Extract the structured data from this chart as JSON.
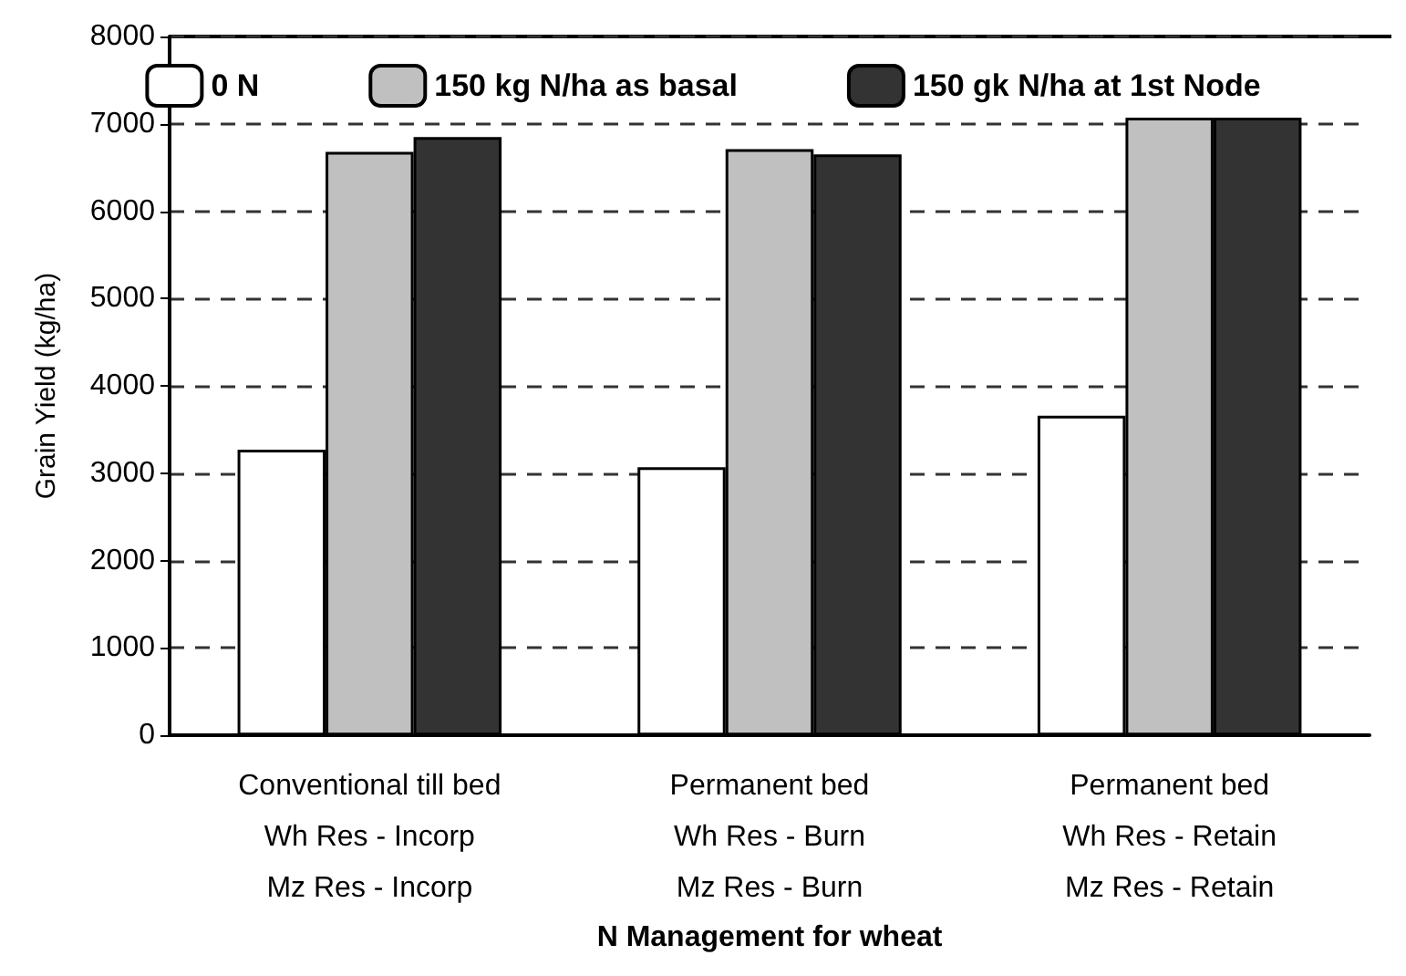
{
  "chart_data": {
    "type": "bar",
    "xlabel": "N Management for wheat",
    "ylabel": "Grain Yield (kg/ha)",
    "categories": [
      "Conventional till bed\nWh Res - Incorp\nMz Res - Incorp",
      "Permanent bed\nWh Res - Burn\nMz Res - Burn",
      "Permanent bed\nWh Res - Retain\nMz Res - Retain"
    ],
    "series": [
      {
        "name": "0 N",
        "color": "#ffffff",
        "values": [
          3270,
          3070,
          3660
        ]
      },
      {
        "name": "150 kg N/ha as basal",
        "color": "#c0c0c0",
        "values": [
          6680,
          6710,
          7070
        ]
      },
      {
        "name": "150 gk N/ha at 1st Node",
        "color": "#333333",
        "values": [
          6850,
          6650,
          7070
        ]
      }
    ],
    "ylim": [
      0,
      8000
    ],
    "yticks": [
      0,
      1000,
      2000,
      3000,
      4000,
      5000,
      6000,
      7000,
      8000
    ],
    "grid": "y",
    "legend": "top"
  }
}
